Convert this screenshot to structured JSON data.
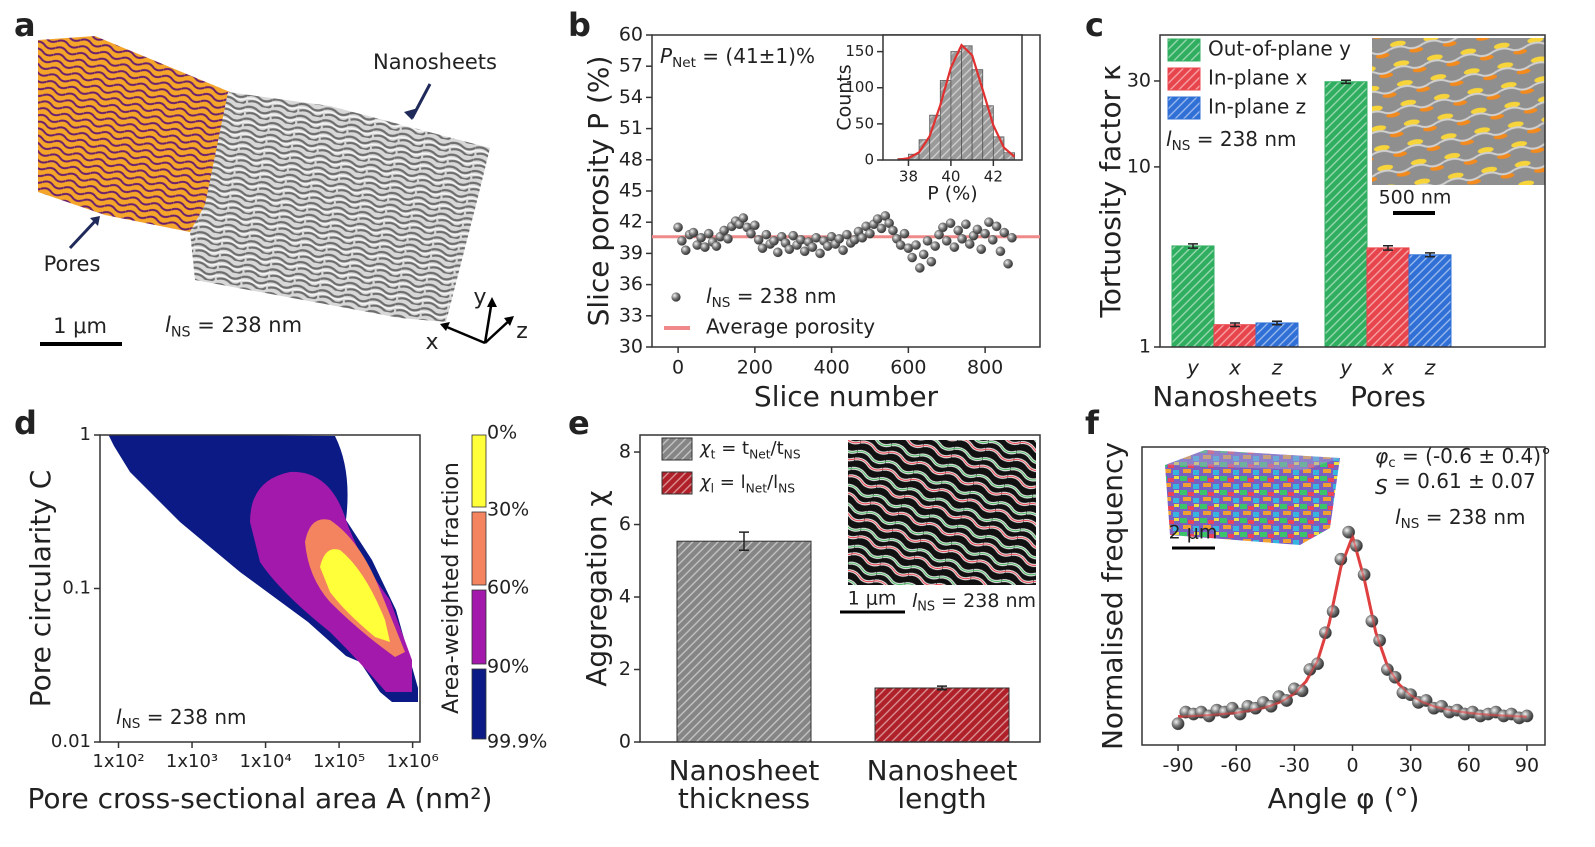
{
  "panel_a": {
    "letter": "a",
    "nanosheets": "Nanosheets",
    "pores": "Pores",
    "scale": "1 μm",
    "lns": [
      "l",
      "NS",
      " = 238 nm"
    ],
    "axes": [
      "x",
      "y",
      "z"
    ]
  },
  "chart_data": [
    {
      "letter": "b",
      "type": "scatter",
      "xlabel": "Slice number",
      "ylabel": "Slice porosity P (%)",
      "annotation": [
        "P",
        "Net",
        " = (41±1)%"
      ],
      "x": [
        0,
        10,
        20,
        30,
        40,
        50,
        60,
        70,
        80,
        90,
        100,
        110,
        120,
        130,
        140,
        150,
        160,
        170,
        180,
        190,
        200,
        210,
        220,
        230,
        240,
        250,
        260,
        270,
        280,
        290,
        300,
        310,
        320,
        330,
        340,
        350,
        360,
        370,
        380,
        390,
        400,
        410,
        420,
        430,
        440,
        450,
        460,
        470,
        480,
        490,
        500,
        510,
        520,
        530,
        540,
        550,
        560,
        570,
        580,
        590,
        600,
        610,
        620,
        630,
        640,
        650,
        660,
        670,
        680,
        690,
        700,
        710,
        720,
        730,
        740,
        750,
        760,
        770,
        780,
        790,
        800,
        810,
        820,
        830,
        840,
        850,
        860,
        870
      ],
      "series": [
        {
          "name": [
            "l",
            "NS",
            " = 238 nm"
          ],
          "color": "#555555",
          "values": [
            41.5,
            40.2,
            39.3,
            40.8,
            41.0,
            39.8,
            40.5,
            39.6,
            40.9,
            40.1,
            39.7,
            40.6,
            41.2,
            40.4,
            41.6,
            42.1,
            41.8,
            42.4,
            41.5,
            40.9,
            41.7,
            40.3,
            39.5,
            40.8,
            39.9,
            40.2,
            39.1,
            40.6,
            40.0,
            39.4,
            40.7,
            39.8,
            40.3,
            39.2,
            40.1,
            39.6,
            40.5,
            39.0,
            40.2,
            39.7,
            40.6,
            39.9,
            40.4,
            39.3,
            40.8,
            40.0,
            40.3,
            41.1,
            40.5,
            41.6,
            40.9,
            41.8,
            42.3,
            41.4,
            42.6,
            41.9,
            41.2,
            40.4,
            39.8,
            40.9,
            39.5,
            38.6,
            39.8,
            37.6,
            38.9,
            40.2,
            38.2,
            39.7,
            40.8,
            41.5,
            40.2,
            41.9,
            39.6,
            41.2,
            40.4,
            41.8,
            39.9,
            40.7,
            41.3,
            39.4,
            40.9,
            42.0,
            40.3,
            41.6,
            39.2,
            41.0,
            38.0,
            40.5
          ]
        }
      ],
      "reference_line": {
        "name": "Average porosity",
        "value": 40.6,
        "color": "#f08a8a"
      },
      "xlim": [
        -68,
        943
      ],
      "xticks": [
        0,
        200,
        400,
        600,
        800
      ],
      "ylim": [
        30,
        60
      ],
      "yticks": [
        30,
        33,
        36,
        39,
        42,
        45,
        48,
        51,
        54,
        57,
        60
      ],
      "inset": {
        "type": "histogram",
        "xlabel": "P (%)",
        "ylabel": "Counts",
        "color": "#9a9a9a",
        "bins": [
          37.5,
          38.0,
          38.5,
          39.0,
          39.5,
          40.0,
          40.5,
          41.0,
          41.5,
          42.0,
          42.5,
          43.0
        ],
        "counts": [
          2,
          8,
          28,
          62,
          110,
          150,
          158,
          125,
          75,
          32,
          10
        ],
        "fit": {
          "color": "#e03030",
          "x": [
            37.5,
            38.0,
            38.5,
            39.0,
            39.5,
            40.0,
            40.5,
            41.0,
            41.5,
            42.0,
            42.5,
            43.0
          ],
          "values": [
            0.4,
            2.5,
            10.6,
            33,
            76,
            128,
            159,
            145,
            97,
            48,
            17,
            4.5
          ]
        },
        "xlim": [
          36.8,
          43.35
        ],
        "xticks": [
          38,
          40,
          42
        ],
        "ylim": [
          0,
          173
        ],
        "yticks": [
          0,
          50,
          100,
          150
        ]
      }
    },
    {
      "letter": "c",
      "type": "bar",
      "ylabel": "Tortuosity factor κ",
      "log_y": true,
      "categories": [
        "Nanosheets",
        "Pores"
      ],
      "tick_labels": [
        "y",
        "x",
        "z"
      ],
      "series": [
        {
          "name": "Out-of-plane y",
          "color": "#2fae5f",
          "values": [
            3.64,
            29.7
          ],
          "errors": [
            0.1,
            0.6
          ]
        },
        {
          "name": "In-plane x",
          "color": "#e8444c",
          "values": [
            1.33,
            3.55
          ],
          "errors": [
            0.03,
            0.1
          ]
        },
        {
          "name": "In-plane z",
          "color": "#2f6fd6",
          "values": [
            1.36,
            3.25
          ],
          "errors": [
            0.03,
            0.08
          ]
        }
      ],
      "legend": "upper left",
      "annotation": [
        "l",
        "NS",
        " = 238 nm"
      ],
      "scale_label": "500 nm",
      "ylim": [
        1,
        54
      ],
      "yticks": [
        1,
        10,
        30
      ]
    },
    {
      "letter": "d",
      "type": "contour",
      "xlabel": "Pore cross-sectional area A (nm²)",
      "ylabel": "Pore circularity C",
      "log_x": true,
      "log_y": true,
      "annotation": [
        "l",
        "NS",
        " = 238 nm"
      ],
      "colorbar_label": "Area-weighted fraction",
      "levels": [
        0,
        30,
        60,
        90,
        99.9
      ],
      "level_labels": [
        "0%",
        "30%",
        "60%",
        "90%",
        "99.9%"
      ],
      "colors": [
        "#ffff3a",
        "#f4845f",
        "#a319ab",
        "#0b1a85"
      ],
      "xlim": [
        56,
        1260000
      ],
      "xticks": [
        {
          "value": 100,
          "label": "1x10²"
        },
        {
          "value": 1000,
          "label": "1x10³"
        },
        {
          "value": 10000,
          "label": "1x10⁴"
        },
        {
          "value": 100000,
          "label": "1x10⁵"
        },
        {
          "value": 1000000,
          "label": "1x10⁶"
        }
      ],
      "ylim": [
        0.01,
        1
      ],
      "yticks": [
        0.01,
        0.1,
        1
      ]
    },
    {
      "letter": "e",
      "type": "bar",
      "ylabel": "Aggregation χ",
      "categories": [
        [
          "Nanosheet",
          "thickness"
        ],
        [
          "Nanosheet",
          "length"
        ]
      ],
      "values": [
        5.54,
        1.49
      ],
      "errors": [
        0.25,
        0.05
      ],
      "colors": [
        "#858585",
        "#b02028"
      ],
      "legend": [
        [
          "χ",
          "t",
          " = t",
          "Net",
          "/t",
          "NS"
        ],
        [
          "χ",
          "l",
          " = l",
          "Net",
          "/l",
          "NS"
        ]
      ],
      "annotation": [
        "l",
        "NS",
        " = 238 nm"
      ],
      "scale_label": "1 μm",
      "ylim": [
        0,
        8.47
      ],
      "yticks": [
        0,
        2,
        4,
        6,
        8
      ]
    },
    {
      "letter": "f",
      "type": "scatter",
      "xlabel": "Angle φ (°)",
      "ylabel": "Normalised frequency",
      "color": "#666666",
      "x": [
        -90,
        -86,
        -82,
        -78,
        -74,
        -70,
        -66,
        -62,
        -58,
        -54,
        -50,
        -46,
        -42,
        -38,
        -34,
        -30,
        -26,
        -22,
        -18,
        -14,
        -10,
        -6,
        -2,
        2,
        6,
        10,
        14,
        18,
        22,
        26,
        30,
        34,
        38,
        42,
        46,
        50,
        54,
        58,
        62,
        66,
        70,
        74,
        78,
        82,
        86,
        90
      ],
      "values": [
        0.03,
        0.09,
        0.08,
        0.09,
        0.07,
        0.1,
        0.09,
        0.11,
        0.08,
        0.12,
        0.11,
        0.14,
        0.12,
        0.17,
        0.15,
        0.21,
        0.2,
        0.31,
        0.34,
        0.5,
        0.61,
        0.88,
        1.02,
        0.95,
        0.8,
        0.56,
        0.46,
        0.31,
        0.27,
        0.19,
        0.18,
        0.14,
        0.15,
        0.11,
        0.12,
        0.09,
        0.1,
        0.08,
        0.09,
        0.07,
        0.08,
        0.09,
        0.07,
        0.08,
        0.06,
        0.07
      ],
      "fit": {
        "color": "#e04040",
        "x": [
          -90,
          -84,
          -78,
          -72,
          -66,
          -60,
          -54,
          -48,
          -42,
          -36,
          -30,
          -24,
          -18,
          -12,
          -6,
          0,
          6,
          12,
          18,
          24,
          30,
          36,
          42,
          48,
          54,
          60,
          66,
          72,
          78,
          84,
          90
        ],
        "values": [
          0.067,
          0.069,
          0.072,
          0.076,
          0.081,
          0.086,
          0.096,
          0.107,
          0.124,
          0.148,
          0.186,
          0.248,
          0.356,
          0.55,
          0.84,
          0.998,
          0.78,
          0.502,
          0.329,
          0.233,
          0.177,
          0.142,
          0.12,
          0.105,
          0.094,
          0.086,
          0.08,
          0.075,
          0.072,
          0.069,
          0.066
        ]
      },
      "annotations": [
        [
          "φ",
          "c",
          " = (-0.6 ± 0.4)°"
        ],
        [
          "S",
          "",
          " = 0.61 ± 0.07"
        ],
        [
          "l",
          "NS",
          " = 238 nm"
        ]
      ],
      "scale_label": "2 μm",
      "xlim": [
        -108.6,
        99.3
      ],
      "xticks": [
        -90,
        -60,
        -30,
        0,
        30,
        60,
        90
      ],
      "ylim": [
        -0.08,
        1.46
      ]
    }
  ]
}
